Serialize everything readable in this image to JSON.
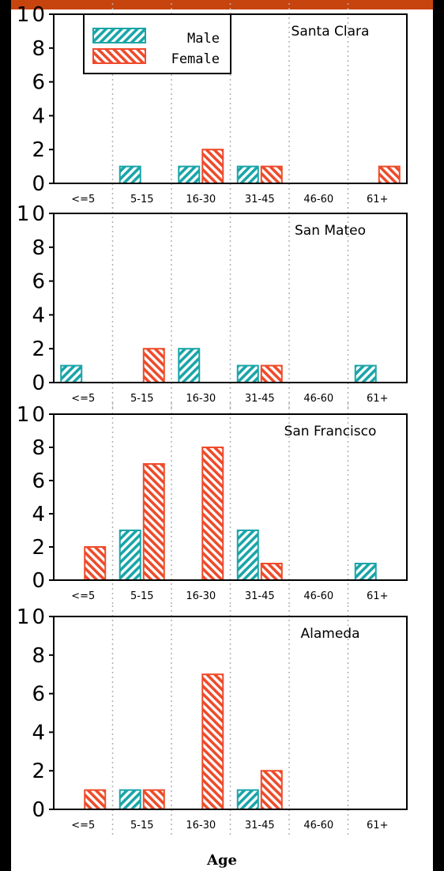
{
  "colors": {
    "top_bar": "#c8440f",
    "male": "#1aa5a8",
    "female": "#ee4b2b",
    "frame": "#000000",
    "grid": "#b0b0b0"
  },
  "legend": {
    "male_label": "Male",
    "female_label": "Female"
  },
  "chart_data": [
    {
      "type": "bar",
      "title": "Santa Clara",
      "categories": [
        "<=5",
        "5-15",
        "16-30",
        "31-45",
        "46-60",
        "61+"
      ],
      "ylim": [
        0,
        10
      ],
      "yticks": [
        "0",
        "2",
        "4",
        "6",
        "8",
        "10"
      ],
      "series": [
        {
          "name": "Male",
          "values": [
            0,
            1,
            1,
            1,
            0,
            0
          ]
        },
        {
          "name": "Female",
          "values": [
            0,
            0,
            2,
            1,
            0,
            1
          ]
        }
      ],
      "grid": "vertical dotted",
      "legend_placement": "top-left"
    },
    {
      "type": "bar",
      "title": "San Mateo",
      "categories": [
        "<=5",
        "5-15",
        "16-30",
        "31-45",
        "46-60",
        "61+"
      ],
      "ylim": [
        0,
        10
      ],
      "yticks": [
        "0",
        "2",
        "4",
        "6",
        "8",
        "10"
      ],
      "series": [
        {
          "name": "Male",
          "values": [
            1,
            0,
            2,
            1,
            0,
            1
          ]
        },
        {
          "name": "Female",
          "values": [
            0,
            2,
            0,
            1,
            0,
            0
          ]
        }
      ],
      "grid": "vertical dotted"
    },
    {
      "type": "bar",
      "title": "San Francisco",
      "categories": [
        "<=5",
        "5-15",
        "16-30",
        "31-45",
        "46-60",
        "61+"
      ],
      "ylim": [
        0,
        10
      ],
      "yticks": [
        "0",
        "2",
        "4",
        "6",
        "8",
        "10"
      ],
      "series": [
        {
          "name": "Male",
          "values": [
            0,
            3,
            0,
            3,
            0,
            1
          ]
        },
        {
          "name": "Female",
          "values": [
            2,
            7,
            8,
            1,
            0,
            0
          ]
        }
      ],
      "grid": "vertical dotted"
    },
    {
      "type": "bar",
      "title": "Alameda",
      "categories": [
        "<=5",
        "5-15",
        "16-30",
        "31-45",
        "46-60",
        "61+"
      ],
      "ylim": [
        0,
        10
      ],
      "yticks": [
        "0",
        "2",
        "4",
        "6",
        "8",
        "10"
      ],
      "series": [
        {
          "name": "Male",
          "values": [
            0,
            1,
            0,
            1,
            0,
            0
          ]
        },
        {
          "name": "Female",
          "values": [
            1,
            1,
            7,
            2,
            0,
            0
          ]
        }
      ],
      "grid": "vertical dotted"
    }
  ],
  "xlabel": "Age"
}
